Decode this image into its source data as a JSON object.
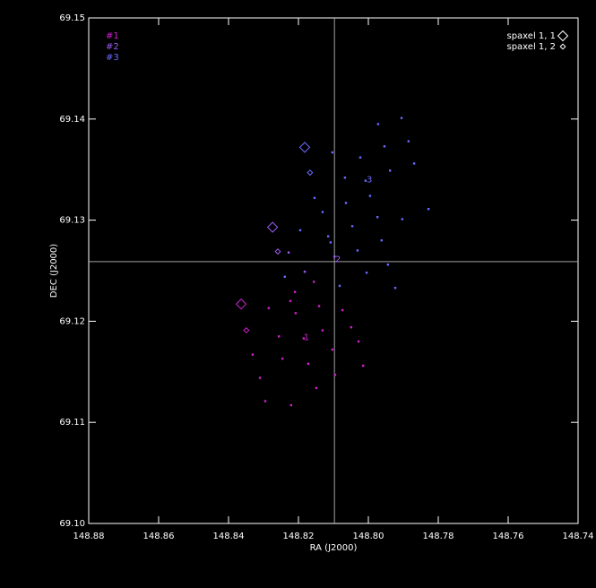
{
  "chart_data": {
    "type": "scatter",
    "xlabel": "RA (J2000)",
    "ylabel": "DEC (J2000)",
    "xlim": [
      148.88,
      148.74
    ],
    "xticks": [
      148.88,
      148.86,
      148.84,
      148.82,
      {
        "value": 148.8,
        "label": "148.80"
      },
      148.78,
      148.76,
      148.74
    ],
    "ylim": [
      69.1,
      69.15
    ],
    "yticks": [
      {
        "value": 69.1,
        "label": "69.10"
      },
      69.11,
      69.12,
      69.13,
      69.14,
      69.15
    ],
    "crosshair": {
      "x": 148.8097,
      "y": 69.1259,
      "color": "#a0a0a0"
    },
    "series": [
      {
        "name": "#1",
        "color": "#d020d0",
        "label": "1",
        "label_x": 148.8177,
        "label_y": 69.1184,
        "x": [
          148.8295,
          148.8221,
          148.831,
          148.8246,
          148.8149,
          148.8331,
          148.8256,
          148.8172,
          148.8095,
          148.8015,
          148.8285,
          148.8208,
          148.8141,
          148.8103,
          148.8028,
          148.821,
          148.8156,
          148.8074,
          148.8049,
          148.8223,
          148.8185,
          148.8131
        ],
        "y": [
          69.1121,
          69.1117,
          69.1144,
          69.1163,
          69.1134,
          69.1167,
          69.1185,
          69.1158,
          69.1147,
          69.1156,
          69.1213,
          69.1208,
          69.1215,
          69.1172,
          69.118,
          69.1229,
          69.1239,
          69.1211,
          69.1194,
          69.122,
          69.1183,
          69.1191
        ]
      },
      {
        "name": "#2",
        "color": "#9a5cf0",
        "label": "2",
        "label_x": 148.8087,
        "label_y": 69.1261,
        "x": [
          148.8228,
          148.8097,
          148.8182
        ],
        "y": [
          69.1268,
          69.1264,
          69.1249
        ]
      },
      {
        "name": "#3",
        "color": "#6a6aff",
        "label": "3",
        "label_x": 148.7997,
        "label_y": 69.134,
        "x": [
          148.7972,
          148.7905,
          148.7954,
          148.7885,
          148.8023,
          148.7938,
          148.7869,
          148.8067,
          148.8008,
          148.7828,
          148.8154,
          148.8064,
          148.7995,
          148.7903,
          148.8131,
          148.8046,
          148.7974,
          148.8195,
          148.8115,
          148.8031,
          148.7962,
          148.8108,
          148.7944,
          148.8239,
          148.8082,
          148.8005,
          148.7923,
          148.8103
        ],
        "y": [
          69.1395,
          69.1401,
          69.1373,
          69.1378,
          69.1362,
          69.1349,
          69.1356,
          69.1342,
          69.1339,
          69.1311,
          69.1322,
          69.1317,
          69.1324,
          69.1301,
          69.1308,
          69.1294,
          69.1303,
          69.129,
          69.1284,
          69.127,
          69.128,
          69.1278,
          69.1256,
          69.1244,
          69.1235,
          69.1248,
          69.1233,
          69.1367
        ]
      }
    ],
    "markers": [
      {
        "name": "spaxel 1, 1",
        "size": "large",
        "x": [
          148.8364,
          148.8274,
          148.8182
        ],
        "y": [
          69.1217,
          69.1293,
          69.1372
        ],
        "colors": [
          "#d020d0",
          "#9a5cf0",
          "#6a6aff"
        ]
      },
      {
        "name": "spaxel 1, 2",
        "size": "small",
        "x": [
          148.8349,
          148.8259,
          148.8167
        ],
        "y": [
          69.1191,
          69.1269,
          69.1347
        ],
        "colors": [
          "#d020d0",
          "#9a5cf0",
          "#6a6aff"
        ]
      }
    ]
  }
}
